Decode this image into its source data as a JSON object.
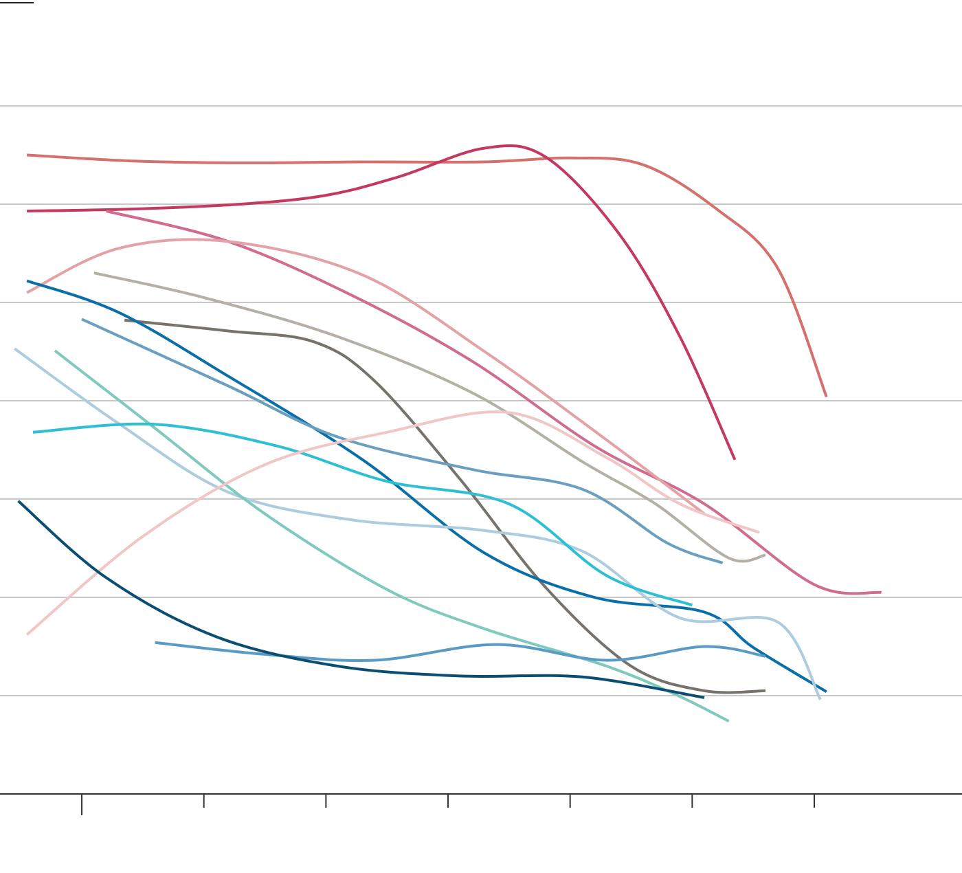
{
  "chart_data": {
    "type": "line",
    "title": "",
    "xlabel": "",
    "ylabel": "",
    "x_ticks": [
      1,
      2,
      3,
      4,
      5,
      6,
      7
    ],
    "x_range": [
      0.33,
      8.21
    ],
    "y_gridlines": [
      1,
      2,
      3,
      4,
      5,
      6,
      7
    ],
    "y_range": [
      0,
      8
    ],
    "grid": true,
    "legend": "none",
    "series": [
      {
        "color": "#d4706e",
        "points": [
          [
            0.55,
            6.5
          ],
          [
            1.4,
            6.44
          ],
          [
            2.3,
            6.42
          ],
          [
            3.3,
            6.43
          ],
          [
            4.3,
            6.43
          ],
          [
            5.0,
            6.47
          ],
          [
            5.6,
            6.4
          ],
          [
            6.2,
            5.95
          ],
          [
            6.7,
            5.35
          ],
          [
            7.1,
            4.04
          ]
        ]
      },
      {
        "color": "#c4395f",
        "points": [
          [
            0.55,
            5.93
          ],
          [
            1.4,
            5.95
          ],
          [
            2.3,
            6.0
          ],
          [
            3.0,
            6.09
          ],
          [
            3.6,
            6.28
          ],
          [
            4.3,
            6.57
          ],
          [
            4.8,
            6.48
          ],
          [
            5.4,
            5.7
          ],
          [
            5.9,
            4.65
          ],
          [
            6.35,
            3.4
          ]
        ]
      },
      {
        "color": "#d06c8d",
        "points": [
          [
            1.2,
            5.93
          ],
          [
            2.2,
            5.62
          ],
          [
            3.2,
            5.08
          ],
          [
            4.2,
            4.4
          ],
          [
            5.2,
            3.54
          ],
          [
            6.1,
            2.95
          ],
          [
            7.0,
            2.13
          ],
          [
            7.55,
            2.05
          ]
        ]
      },
      {
        "color": "#e3a3a6",
        "points": [
          [
            0.55,
            5.1
          ],
          [
            1.3,
            5.55
          ],
          [
            2.2,
            5.62
          ],
          [
            3.3,
            5.28
          ],
          [
            4.3,
            4.5
          ],
          [
            5.3,
            3.6
          ],
          [
            6.1,
            2.85
          ]
        ]
      },
      {
        "color": "#b5b0a5",
        "points": [
          [
            1.1,
            5.3
          ],
          [
            2.0,
            5.05
          ],
          [
            3.1,
            4.65
          ],
          [
            4.2,
            4.08
          ],
          [
            5.1,
            3.38
          ],
          [
            5.7,
            2.95
          ],
          [
            6.3,
            2.4
          ],
          [
            6.6,
            2.43
          ]
        ]
      },
      {
        "color": "#77726b",
        "points": [
          [
            1.35,
            4.82
          ],
          [
            2.2,
            4.71
          ],
          [
            2.9,
            4.6
          ],
          [
            3.4,
            4.2
          ],
          [
            4.1,
            3.2
          ],
          [
            4.8,
            2.1
          ],
          [
            5.5,
            1.3
          ],
          [
            6.1,
            1.05
          ],
          [
            6.6,
            1.05
          ]
        ]
      },
      {
        "color": "#0a6fa9",
        "points": [
          [
            0.55,
            5.22
          ],
          [
            1.3,
            4.9
          ],
          [
            2.2,
            4.25
          ],
          [
            3.3,
            3.4
          ],
          [
            4.3,
            2.45
          ],
          [
            5.2,
            2.0
          ],
          [
            6.1,
            1.85
          ],
          [
            6.5,
            1.49
          ],
          [
            7.1,
            1.04
          ]
        ]
      },
      {
        "color": "#6a9fc0",
        "points": [
          [
            1.0,
            4.83
          ],
          [
            2.2,
            4.15
          ],
          [
            3.1,
            3.63
          ],
          [
            4.2,
            3.3
          ],
          [
            5.1,
            3.1
          ],
          [
            5.8,
            2.55
          ],
          [
            6.25,
            2.35
          ]
        ]
      },
      {
        "color": "#adcddf",
        "points": [
          [
            0.45,
            4.53
          ],
          [
            1.3,
            3.77
          ],
          [
            2.2,
            3.07
          ],
          [
            3.2,
            2.79
          ],
          [
            4.3,
            2.68
          ],
          [
            5.1,
            2.47
          ],
          [
            5.9,
            1.79
          ],
          [
            6.7,
            1.75
          ],
          [
            7.05,
            0.96
          ]
        ]
      },
      {
        "color": "#7fcabd",
        "points": [
          [
            0.78,
            4.51
          ],
          [
            1.6,
            3.72
          ],
          [
            2.5,
            2.85
          ],
          [
            3.5,
            2.08
          ],
          [
            4.3,
            1.68
          ],
          [
            5.3,
            1.3
          ],
          [
            5.9,
            0.99
          ],
          [
            6.3,
            0.74
          ]
        ]
      },
      {
        "color": "#2fbfd2",
        "points": [
          [
            0.6,
            3.68
          ],
          [
            1.6,
            3.76
          ],
          [
            2.6,
            3.54
          ],
          [
            3.5,
            3.18
          ],
          [
            4.5,
            2.95
          ],
          [
            5.3,
            2.22
          ],
          [
            6.0,
            1.92
          ]
        ]
      },
      {
        "color": "#f0c6c6",
        "points": [
          [
            0.55,
            1.62
          ],
          [
            1.5,
            2.62
          ],
          [
            2.5,
            3.35
          ],
          [
            3.5,
            3.68
          ],
          [
            4.5,
            3.88
          ],
          [
            5.3,
            3.42
          ],
          [
            5.9,
            2.95
          ],
          [
            6.55,
            2.66
          ]
        ]
      },
      {
        "color": "#5a9bc6",
        "points": [
          [
            1.6,
            1.54
          ],
          [
            2.5,
            1.42
          ],
          [
            3.4,
            1.36
          ],
          [
            4.4,
            1.52
          ],
          [
            5.3,
            1.36
          ],
          [
            6.1,
            1.5
          ],
          [
            6.6,
            1.4
          ]
        ]
      },
      {
        "color": "#0b4e72",
        "points": [
          [
            0.48,
            2.98
          ],
          [
            1.2,
            2.2
          ],
          [
            2.1,
            1.6
          ],
          [
            3.1,
            1.3
          ],
          [
            4.1,
            1.2
          ],
          [
            5.1,
            1.19
          ],
          [
            6.1,
            0.98
          ]
        ]
      }
    ]
  }
}
